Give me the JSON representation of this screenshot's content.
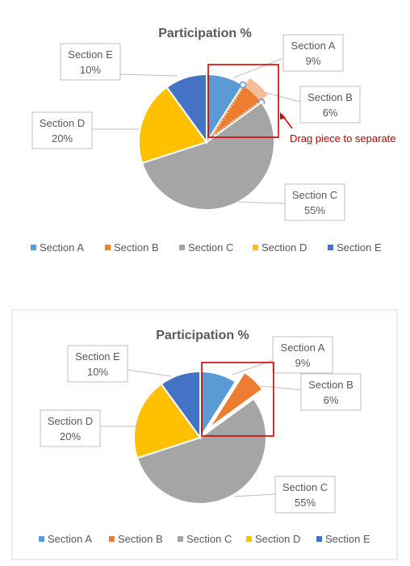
{
  "instruction": "Drag piece to separate",
  "colors": {
    "section_a": "#5b9bd5",
    "section_b": "#ed7d31",
    "section_c": "#a5a5a5",
    "section_d": "#ffc000",
    "section_e": "#4472c4",
    "highlight": "#d00000"
  },
  "chart_data": [
    {
      "type": "pie",
      "title": "Participation %",
      "categories": [
        "Section A",
        "Section B",
        "Section C",
        "Section D",
        "Section E"
      ],
      "values": [
        9,
        6,
        55,
        20,
        10
      ],
      "data_labels": [
        "9%",
        "6%",
        "55%",
        "20%",
        "10%"
      ],
      "legend_position": "bottom",
      "state": "dragging Section B slice (selected)"
    },
    {
      "type": "pie",
      "title": "Participation %",
      "categories": [
        "Section A",
        "Section B",
        "Section C",
        "Section D",
        "Section E"
      ],
      "values": [
        9,
        6,
        55,
        20,
        10
      ],
      "data_labels": [
        "9%",
        "6%",
        "55%",
        "20%",
        "10%"
      ],
      "legend_position": "bottom",
      "state": "Section B slice exploded"
    }
  ]
}
